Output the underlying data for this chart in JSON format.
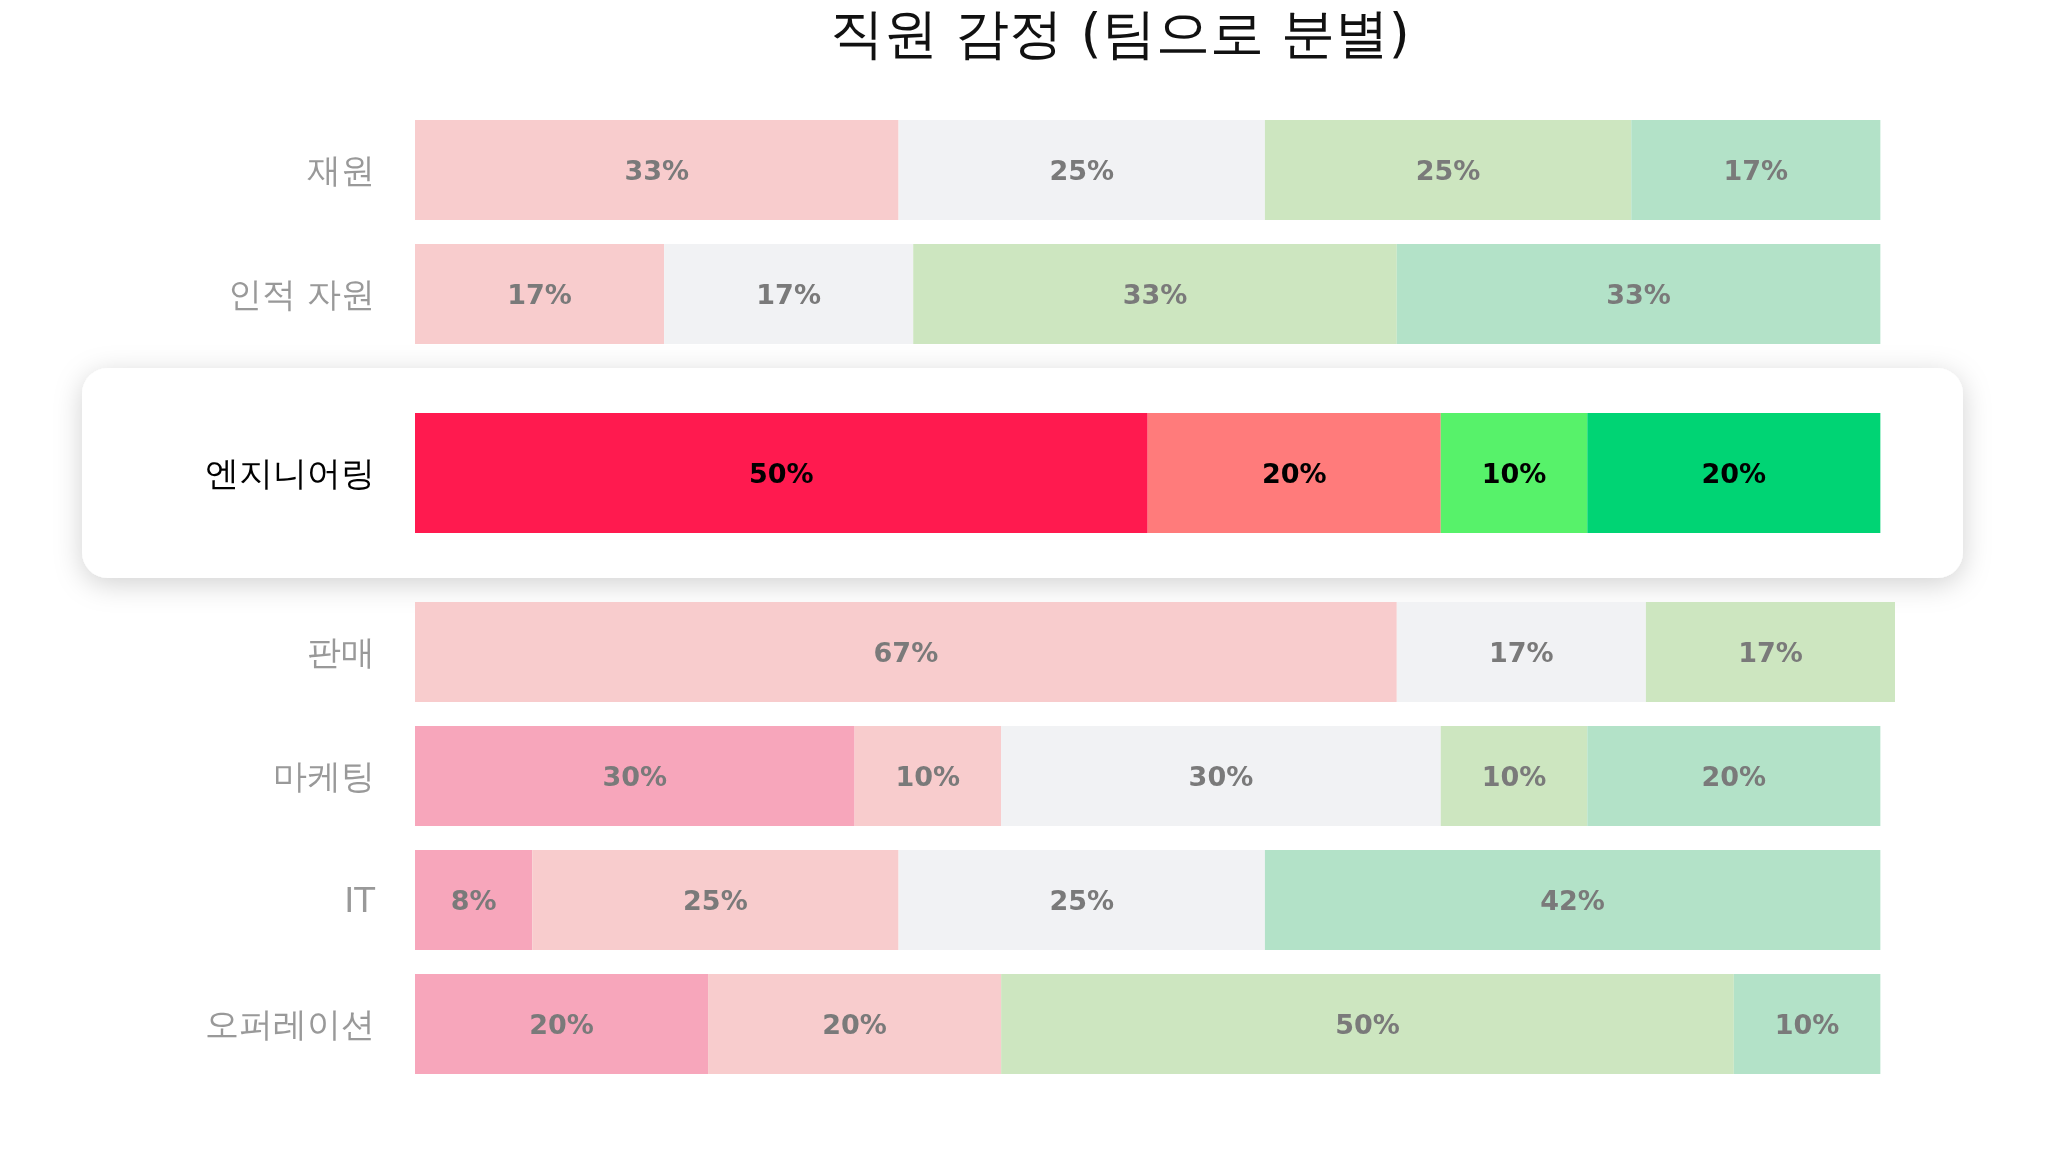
{
  "chart_data": {
    "type": "bar",
    "orientation": "horizontal",
    "stacked": true,
    "title": "직원 감정 (팀으로 분별)",
    "xlim": [
      0,
      101
    ],
    "categories": [
      "재원",
      "인적 자원",
      "엔지니어링",
      "판매",
      "마케팅",
      "IT",
      "오퍼레이션"
    ],
    "series": [
      {
        "values": [
          null,
          null,
          50,
          null,
          30,
          8,
          20
        ],
        "value_labels": [
          null,
          null,
          "50%",
          null,
          "30%",
          "8%",
          "20%"
        ],
        "colors": [
          null,
          null,
          "#ff1a4f",
          null,
          "#f7a6bb",
          "#f7a6bb",
          "#f7a6bb"
        ]
      },
      {
        "values": [
          33,
          17,
          20,
          67,
          10,
          25,
          20
        ],
        "value_labels": [
          "33%",
          "17%",
          "20%",
          "67%",
          "10%",
          "25%",
          "20%"
        ],
        "colors": [
          "#f8cccd",
          "#f8cccd",
          "#ff7b7b",
          "#f8cccd",
          "#f8cccd",
          "#f8cccd",
          "#f8cccd"
        ]
      },
      {
        "values": [
          25,
          17,
          null,
          17,
          30,
          25,
          null
        ],
        "value_labels": [
          "25%",
          "17%",
          null,
          "17%",
          "30%",
          "25%",
          null
        ],
        "colors": [
          "#f1f2f4",
          "#f1f2f4",
          null,
          "#f1f2f4",
          "#f1f2f4",
          "#f1f2f4",
          null
        ]
      },
      {
        "values": [
          25,
          33,
          10,
          17,
          10,
          null,
          50
        ],
        "value_labels": [
          "25%",
          "33%",
          "10%",
          "17%",
          "10%",
          null,
          "50%"
        ],
        "colors": [
          "#cde6c0",
          "#cde6c0",
          "#57f26a",
          "#cde6c0",
          "#cde6c0",
          null,
          "#cde6c0"
        ]
      },
      {
        "values": [
          17,
          33,
          20,
          null,
          20,
          42,
          10
        ],
        "value_labels": [
          "17%",
          "33%",
          "20%",
          null,
          "20%",
          "42%",
          "10%"
        ],
        "colors": [
          "#b3e2c8",
          "#b3e2c8",
          "#00d474",
          null,
          "#b3e2c8",
          "#b3e2c8",
          "#b3e2c8"
        ]
      }
    ]
  }
}
